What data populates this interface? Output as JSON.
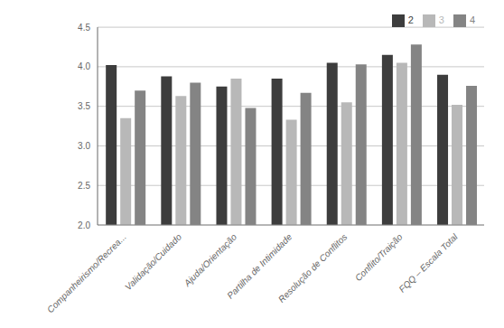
{
  "chart_data": {
    "type": "bar",
    "categories": [
      "Companheirismo/Recrea...",
      "Validação/Cuidado",
      "Ajuda/Orientação",
      "Partilha de Intimidade",
      "Resolução de Conflitos",
      "Conflito/Traição",
      "FQQ – Escala Total"
    ],
    "series": [
      {
        "name": "2",
        "color": "#3d3d3d",
        "values": [
          4.02,
          3.88,
          3.75,
          3.85,
          4.05,
          4.15,
          3.9
        ]
      },
      {
        "name": "3",
        "color": "#b8b8b8",
        "values": [
          3.35,
          3.63,
          3.85,
          3.33,
          3.55,
          4.05,
          3.52
        ]
      },
      {
        "name": "4",
        "color": "#848484",
        "values": [
          3.7,
          3.8,
          3.48,
          3.67,
          4.03,
          4.28,
          3.76
        ]
      }
    ],
    "ylim": [
      2,
      4.5
    ],
    "yticks": [
      {
        "value": 2,
        "label": "2.0"
      },
      {
        "value": 2.5,
        "label": "2.5"
      },
      {
        "value": 3,
        "label": "3.0"
      },
      {
        "value": 3.5,
        "label": "3.5"
      },
      {
        "value": 4,
        "label": "4.0"
      },
      {
        "value": 4.5,
        "label": "4.5"
      }
    ],
    "grid": true,
    "legend": "upper right"
  }
}
